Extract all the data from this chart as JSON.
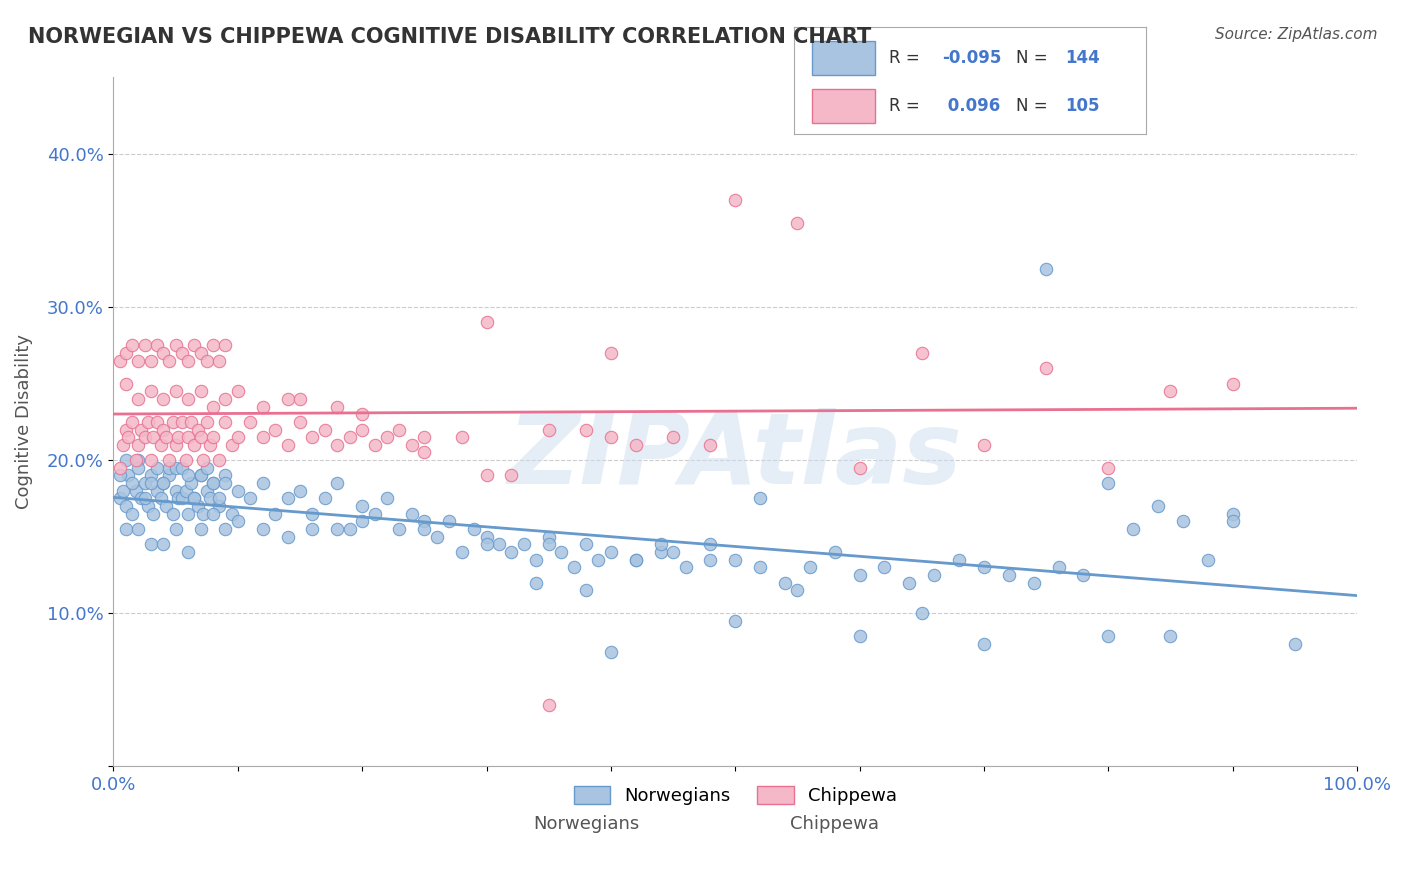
{
  "title": "NORWEGIAN VS CHIPPEWA COGNITIVE DISABILITY CORRELATION CHART",
  "source": "Source: ZipAtlas.com",
  "xlabel": "",
  "ylabel": "Cognitive Disability",
  "xlim": [
    0,
    1
  ],
  "ylim": [
    0,
    0.45
  ],
  "xticks": [
    0.0,
    0.1,
    0.2,
    0.3,
    0.4,
    0.5,
    0.6,
    0.7,
    0.8,
    0.9,
    1.0
  ],
  "yticks": [
    0.0,
    0.1,
    0.2,
    0.3,
    0.4
  ],
  "ytick_labels": [
    "",
    "10.0%",
    "20.0%",
    "30.0%",
    "40.0%"
  ],
  "xtick_labels": [
    "0.0%",
    "",
    "",
    "",
    "",
    "",
    "",
    "",
    "",
    "",
    "100.0%"
  ],
  "series": [
    {
      "name": "Norwegians",
      "R": -0.095,
      "N": 144,
      "color": "#a8c4e0",
      "edge_color": "#6699cc",
      "trend_color": "#6699cc",
      "x": [
        0.005,
        0.008,
        0.01,
        0.012,
        0.015,
        0.018,
        0.02,
        0.022,
        0.025,
        0.028,
        0.03,
        0.032,
        0.035,
        0.038,
        0.04,
        0.042,
        0.045,
        0.048,
        0.05,
        0.052,
        0.055,
        0.058,
        0.06,
        0.062,
        0.065,
        0.068,
        0.07,
        0.072,
        0.075,
        0.078,
        0.08,
        0.085,
        0.09,
        0.095,
        0.1,
        0.11,
        0.12,
        0.13,
        0.14,
        0.15,
        0.16,
        0.17,
        0.18,
        0.19,
        0.2,
        0.21,
        0.22,
        0.23,
        0.24,
        0.25,
        0.26,
        0.27,
        0.28,
        0.29,
        0.3,
        0.31,
        0.32,
        0.33,
        0.34,
        0.35,
        0.36,
        0.37,
        0.38,
        0.39,
        0.4,
        0.42,
        0.44,
        0.46,
        0.48,
        0.5,
        0.52,
        0.54,
        0.56,
        0.58,
        0.6,
        0.62,
        0.64,
        0.66,
        0.68,
        0.7,
        0.72,
        0.74,
        0.76,
        0.78,
        0.8,
        0.82,
        0.84,
        0.86,
        0.88,
        0.9,
        0.005,
        0.01,
        0.015,
        0.02,
        0.025,
        0.03,
        0.035,
        0.04,
        0.045,
        0.05,
        0.055,
        0.06,
        0.065,
        0.07,
        0.075,
        0.08,
        0.085,
        0.09,
        0.01,
        0.02,
        0.03,
        0.04,
        0.05,
        0.06,
        0.07,
        0.08,
        0.09,
        0.1,
        0.12,
        0.14,
        0.16,
        0.18,
        0.2,
        0.25,
        0.3,
        0.35,
        0.4,
        0.45,
        0.5,
        0.55,
        0.6,
        0.65,
        0.7,
        0.75,
        0.8,
        0.85,
        0.9,
        0.95,
        0.52,
        0.48,
        0.44,
        0.42,
        0.38,
        0.34
      ],
      "y": [
        0.175,
        0.18,
        0.17,
        0.19,
        0.165,
        0.18,
        0.2,
        0.175,
        0.185,
        0.17,
        0.19,
        0.165,
        0.18,
        0.175,
        0.185,
        0.17,
        0.19,
        0.165,
        0.18,
        0.175,
        0.175,
        0.18,
        0.165,
        0.185,
        0.175,
        0.17,
        0.19,
        0.165,
        0.18,
        0.175,
        0.185,
        0.17,
        0.19,
        0.165,
        0.18,
        0.175,
        0.185,
        0.165,
        0.175,
        0.18,
        0.165,
        0.175,
        0.185,
        0.155,
        0.17,
        0.165,
        0.175,
        0.155,
        0.165,
        0.16,
        0.15,
        0.16,
        0.14,
        0.155,
        0.15,
        0.145,
        0.14,
        0.145,
        0.135,
        0.15,
        0.14,
        0.13,
        0.145,
        0.135,
        0.14,
        0.135,
        0.14,
        0.13,
        0.135,
        0.135,
        0.13,
        0.12,
        0.13,
        0.14,
        0.125,
        0.13,
        0.12,
        0.125,
        0.135,
        0.13,
        0.125,
        0.12,
        0.13,
        0.125,
        0.185,
        0.155,
        0.17,
        0.16,
        0.135,
        0.165,
        0.19,
        0.2,
        0.185,
        0.195,
        0.175,
        0.185,
        0.195,
        0.185,
        0.195,
        0.195,
        0.195,
        0.19,
        0.175,
        0.19,
        0.195,
        0.185,
        0.175,
        0.185,
        0.155,
        0.155,
        0.145,
        0.145,
        0.155,
        0.14,
        0.155,
        0.165,
        0.155,
        0.16,
        0.155,
        0.15,
        0.155,
        0.155,
        0.16,
        0.155,
        0.145,
        0.145,
        0.075,
        0.14,
        0.095,
        0.115,
        0.085,
        0.1,
        0.08,
        0.325,
        0.085,
        0.085,
        0.16,
        0.08,
        0.175,
        0.145,
        0.145,
        0.135,
        0.115,
        0.12
      ]
    },
    {
      "name": "Chippewa",
      "R": 0.096,
      "N": 105,
      "color": "#f4b8c8",
      "edge_color": "#e87090",
      "trend_color": "#e87090",
      "x": [
        0.005,
        0.008,
        0.01,
        0.012,
        0.015,
        0.018,
        0.02,
        0.022,
        0.025,
        0.028,
        0.03,
        0.032,
        0.035,
        0.038,
        0.04,
        0.042,
        0.045,
        0.048,
        0.05,
        0.052,
        0.055,
        0.058,
        0.06,
        0.062,
        0.065,
        0.068,
        0.07,
        0.072,
        0.075,
        0.078,
        0.08,
        0.085,
        0.09,
        0.095,
        0.1,
        0.11,
        0.12,
        0.13,
        0.14,
        0.15,
        0.16,
        0.17,
        0.18,
        0.19,
        0.2,
        0.21,
        0.22,
        0.23,
        0.24,
        0.25,
        0.005,
        0.01,
        0.015,
        0.02,
        0.025,
        0.03,
        0.035,
        0.04,
        0.045,
        0.05,
        0.055,
        0.06,
        0.065,
        0.07,
        0.075,
        0.08,
        0.085,
        0.09,
        0.01,
        0.02,
        0.03,
        0.04,
        0.05,
        0.06,
        0.07,
        0.08,
        0.09,
        0.1,
        0.12,
        0.14,
        0.15,
        0.18,
        0.2,
        0.25,
        0.3,
        0.35,
        0.4,
        0.5,
        0.55,
        0.6,
        0.65,
        0.7,
        0.75,
        0.8,
        0.85,
        0.9,
        0.28,
        0.3,
        0.32,
        0.35,
        0.38,
        0.4,
        0.42,
        0.45,
        0.48
      ],
      "y": [
        0.195,
        0.21,
        0.22,
        0.215,
        0.225,
        0.2,
        0.21,
        0.22,
        0.215,
        0.225,
        0.2,
        0.215,
        0.225,
        0.21,
        0.22,
        0.215,
        0.2,
        0.225,
        0.21,
        0.215,
        0.225,
        0.2,
        0.215,
        0.225,
        0.21,
        0.22,
        0.215,
        0.2,
        0.225,
        0.21,
        0.215,
        0.2,
        0.225,
        0.21,
        0.215,
        0.225,
        0.215,
        0.22,
        0.21,
        0.225,
        0.215,
        0.22,
        0.21,
        0.215,
        0.22,
        0.21,
        0.215,
        0.22,
        0.21,
        0.215,
        0.265,
        0.27,
        0.275,
        0.265,
        0.275,
        0.265,
        0.275,
        0.27,
        0.265,
        0.275,
        0.27,
        0.265,
        0.275,
        0.27,
        0.265,
        0.275,
        0.265,
        0.275,
        0.25,
        0.24,
        0.245,
        0.24,
        0.245,
        0.24,
        0.245,
        0.235,
        0.24,
        0.245,
        0.235,
        0.24,
        0.24,
        0.235,
        0.23,
        0.205,
        0.29,
        0.04,
        0.27,
        0.37,
        0.355,
        0.195,
        0.27,
        0.21,
        0.26,
        0.195,
        0.245,
        0.25,
        0.215,
        0.19,
        0.19,
        0.22,
        0.22,
        0.215,
        0.21,
        0.215,
        0.21
      ]
    }
  ],
  "watermark": "ZIPAtlas",
  "watermark_color": "#ccddee",
  "background_color": "#ffffff",
  "grid_color": "#cccccc",
  "title_color": "#333333",
  "axis_label_color": "#555555",
  "tick_label_color": "#4477cc",
  "legend_R_color": "#4477cc",
  "legend_N_color": "#333333"
}
